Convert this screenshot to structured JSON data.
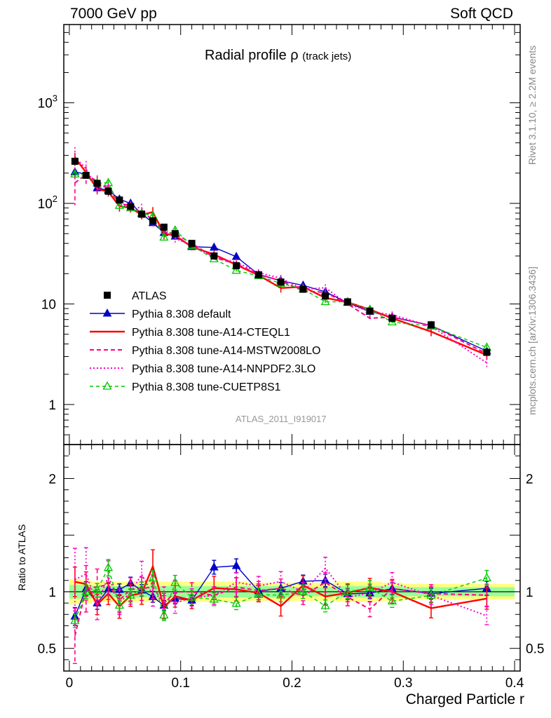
{
  "header": {
    "left": "7000 GeV pp",
    "right": "Soft QCD"
  },
  "side_labels": {
    "rivet": "Rivet 3.1.10, ≥ 2.2M events",
    "mcplots": "mcplots.cern.ch [arXiv:1306.3436]"
  },
  "title_main": "Radial profile ρ",
  "title_sub": "(track jets)",
  "analysis_id": "ATLAS_2011_I919017",
  "xlabel": "Charged Particle r",
  "ratio_ylabel": "Ratio to ATLAS",
  "colors": {
    "data": "#000000",
    "default": "#0000c8",
    "a14cteql1": "#ff0000",
    "mstw": "#ff0080",
    "nnpdf": "#ff00c8",
    "cuetp8s1": "#00c800",
    "band_inner": "#99ff99",
    "band_outer": "#ffff80"
  },
  "chart_data": {
    "type": "line",
    "x_ticks": [
      "0",
      "0.1",
      "0.2",
      "0.3",
      "0.4"
    ],
    "xlim": [
      -0.005,
      0.405
    ],
    "main": {
      "yscale": "log",
      "ylim": [
        0.4,
        6000
      ],
      "y_ticks": [
        "1",
        "10",
        "10^2",
        "10^3"
      ]
    },
    "ratio": {
      "ylim": [
        0.3,
        2.3
      ],
      "y_ticks": [
        "0.5",
        "1",
        "2"
      ]
    },
    "x": [
      0.005,
      0.015,
      0.025,
      0.035,
      0.045,
      0.055,
      0.065,
      0.075,
      0.085,
      0.095,
      0.11,
      0.13,
      0.15,
      0.17,
      0.19,
      0.21,
      0.23,
      0.25,
      0.27,
      0.29,
      0.325,
      0.375
    ],
    "legend": [
      {
        "key": "data",
        "label": "ATLAS",
        "style": "square"
      },
      {
        "key": "default",
        "label": "Pythia 8.308 default",
        "style": "solid-triangle"
      },
      {
        "key": "a14cteql1",
        "label": "Pythia 8.308 tune-A14-CTEQL1",
        "style": "solid-thick"
      },
      {
        "key": "mstw",
        "label": "Pythia 8.308 tune-A14-MSTW2008LO",
        "style": "dashed"
      },
      {
        "key": "nnpdf",
        "label": "Pythia 8.308 tune-A14-NNPDF2.3LO",
        "style": "dotted"
      },
      {
        "key": "cuetp8s1",
        "label": "Pythia 8.308 tune-CUETP8S1",
        "style": "dashed-open-triangle"
      }
    ],
    "data": {
      "name": "ATLAS",
      "values": [
        262,
        190,
        158,
        132,
        108,
        93,
        78,
        67,
        58,
        50,
        40,
        30,
        24,
        19.5,
        16.5,
        14,
        12,
        10.5,
        8.5,
        7.2,
        6.2,
        3.3
      ]
    },
    "band_inner": [
      0.06,
      0.06,
      0.05,
      0.05,
      0.05,
      0.05,
      0.05,
      0.05,
      0.05,
      0.05,
      0.05,
      0.05,
      0.05,
      0.05,
      0.05,
      0.04,
      0.04,
      0.05,
      0.05,
      0.05,
      0.04,
      0.04
    ],
    "band_outer": [
      0.11,
      0.1,
      0.09,
      0.09,
      0.09,
      0.09,
      0.09,
      0.09,
      0.09,
      0.09,
      0.09,
      0.09,
      0.09,
      0.08,
      0.08,
      0.08,
      0.08,
      0.09,
      0.09,
      0.08,
      0.07,
      0.07
    ],
    "series": [
      {
        "key": "default",
        "name": "Pythia 8.308 default",
        "values": [
          205,
          195,
          142,
          135,
          110,
          100,
          79,
          64,
          51,
          47,
          37,
          36.5,
          29.5,
          19.6,
          17,
          15.3,
          13.2,
          10.3,
          8.4,
          7.4,
          6.1,
          3.4
        ],
        "errors": [
          0.1,
          0.06,
          0.06,
          0.05,
          0.05,
          0.05,
          0.05,
          0.05,
          0.05,
          0.05,
          0.05,
          0.05,
          0.05,
          0.05,
          0.05,
          0.05,
          0.05,
          0.05,
          0.05,
          0.05,
          0.05,
          0.06
        ]
      },
      {
        "key": "a14cteql1",
        "name": "Pythia 8.308 tune-A14-CTEQL1",
        "values": [
          285,
          203,
          140,
          130,
          94,
          90,
          77,
          82,
          50,
          48,
          37,
          31,
          24.5,
          19.3,
          14.4,
          14.8,
          11.5,
          10.4,
          8.8,
          7.2,
          5.3,
          3.1
        ],
        "errors": [
          0.12,
          0.1,
          0.1,
          0.1,
          0.12,
          0.1,
          0.1,
          0.12,
          0.12,
          0.1,
          0.08,
          0.1,
          0.1,
          0.08,
          0.1,
          0.08,
          0.08,
          0.08,
          0.08,
          0.1,
          0.1,
          0.1
        ]
      },
      {
        "key": "mstw",
        "name": "Pythia 8.308 tune-A14-MSTW2008LO",
        "values": [
          160,
          195,
          165,
          140,
          100,
          95,
          80,
          70,
          52,
          50,
          40,
          29,
          25,
          19.7,
          17,
          13.5,
          13,
          10,
          7.2,
          7.4,
          6.1,
          3.2
        ],
        "errors": [
          0.4,
          0.2,
          0.15,
          0.12,
          0.12,
          0.1,
          0.1,
          0.1,
          0.1,
          0.1,
          0.08,
          0.08,
          0.08,
          0.08,
          0.08,
          0.08,
          0.08,
          0.08,
          0.08,
          0.08,
          0.08,
          0.1
        ]
      },
      {
        "key": "nnpdf",
        "name": "Pythia 8.308 tune-A14-NNPDF2.3LO",
        "values": [
          290,
          220,
          140,
          150,
          98,
          92,
          90,
          65,
          55,
          45,
          38,
          29,
          26,
          20.5,
          18,
          14,
          14.5,
          10,
          8.4,
          7.8,
          6,
          2.6
        ],
        "errors": [
          0.25,
          0.2,
          0.15,
          0.12,
          0.12,
          0.1,
          0.1,
          0.1,
          0.1,
          0.1,
          0.08,
          0.08,
          0.08,
          0.08,
          0.08,
          0.08,
          0.08,
          0.08,
          0.08,
          0.08,
          0.08,
          0.1
        ]
      },
      {
        "key": "cuetp8s1",
        "name": "Pythia 8.308 tune-CUETP8S1",
        "values": [
          195,
          190,
          160,
          160,
          95,
          90,
          80,
          75,
          46,
          54,
          38,
          28,
          21.5,
          19,
          16,
          14,
          10.5,
          10.5,
          8.8,
          6.6,
          6,
          3.7
        ],
        "errors": [
          0.08,
          0.06,
          0.06,
          0.06,
          0.06,
          0.06,
          0.06,
          0.06,
          0.06,
          0.06,
          0.06,
          0.06,
          0.06,
          0.06,
          0.06,
          0.06,
          0.06,
          0.06,
          0.06,
          0.06,
          0.06,
          0.06
        ]
      }
    ]
  }
}
